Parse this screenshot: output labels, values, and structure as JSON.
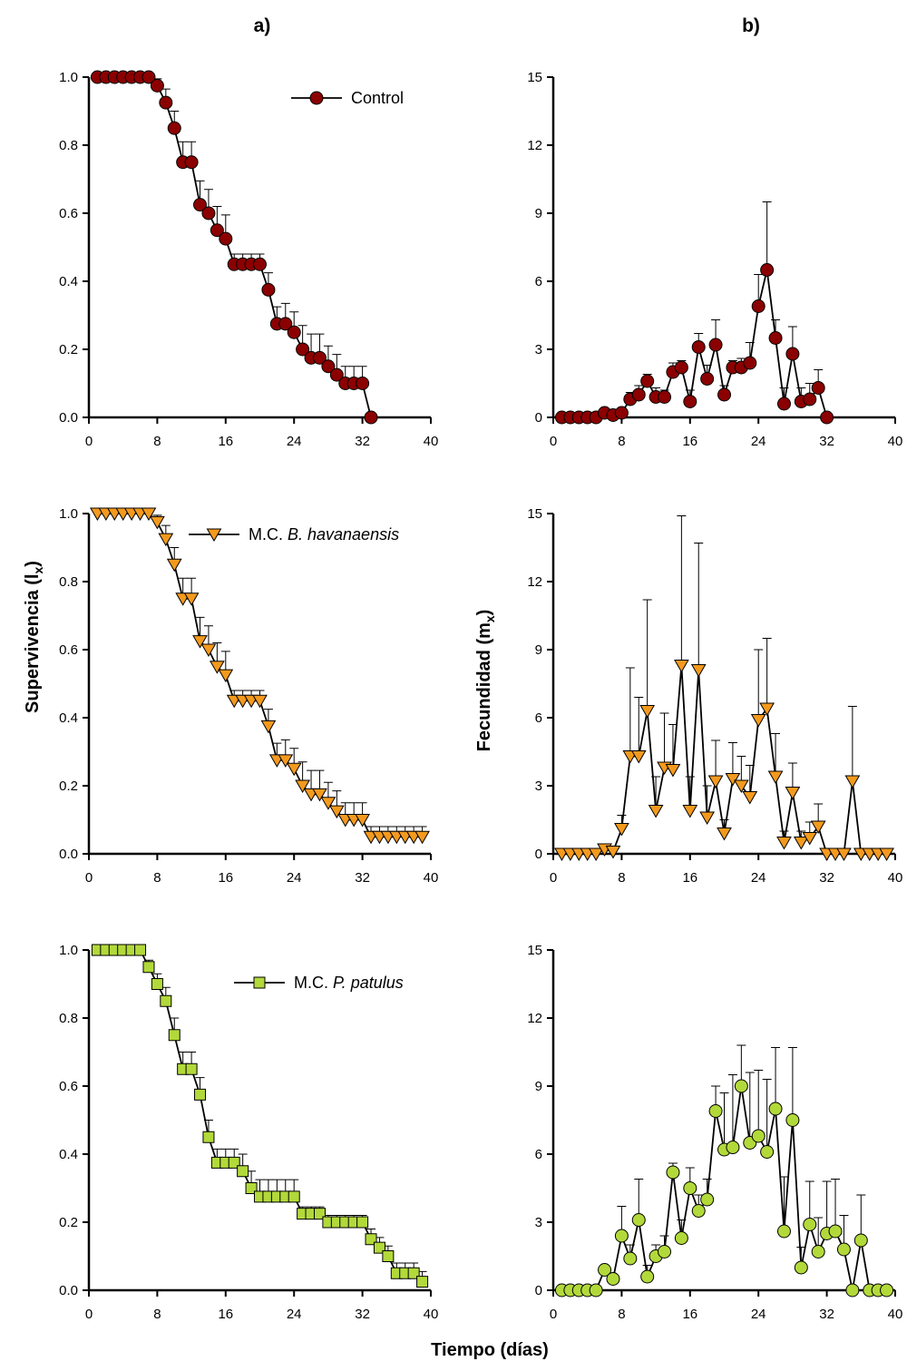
{
  "panel_labels": [
    "a)",
    "b)"
  ],
  "ylabel_left": "Supervivencia (l",
  "ylabel_left_sub": "x",
  "ylabel_right": "Fecundidad (m",
  "ylabel_right_sub": "x",
  "xlabel": "Tiempo (días)",
  "legend": [
    {
      "prefix": "Control",
      "italic": "",
      "suffix": ""
    },
    {
      "prefix": "M.C. ",
      "italic": "B. havanaensis",
      "suffix": ""
    },
    {
      "prefix": "M.C. ",
      "italic": "P. patulus",
      "suffix": ""
    }
  ],
  "colors": {
    "control": "#8b0000",
    "havanaensis": "#f39a1e",
    "patulus": "#b2d93a"
  },
  "chart_data": [
    {
      "type": "line",
      "row": 0,
      "col": 0,
      "marker": "circle",
      "color": "#8b0000",
      "xlim": [
        0,
        40
      ],
      "ylim": [
        0,
        1.0
      ],
      "xticks": [
        "0",
        "8",
        "16",
        "24",
        "32",
        "40"
      ],
      "yticks": [
        "0.0",
        "0.2",
        "0.4",
        "0.6",
        "0.8",
        "1.0"
      ],
      "x": [
        1,
        2,
        3,
        4,
        5,
        6,
        7,
        8,
        9,
        10,
        11,
        12,
        13,
        14,
        15,
        16,
        17,
        18,
        19,
        20,
        21,
        22,
        23,
        24,
        25,
        26,
        27,
        28,
        29,
        30,
        31,
        32,
        33
      ],
      "y": [
        1.0,
        1.0,
        1.0,
        1.0,
        1.0,
        1.0,
        1.0,
        0.975,
        0.925,
        0.85,
        0.75,
        0.75,
        0.625,
        0.6,
        0.55,
        0.525,
        0.45,
        0.45,
        0.45,
        0.45,
        0.375,
        0.275,
        0.275,
        0.25,
        0.2,
        0.175,
        0.175,
        0.15,
        0.125,
        0.1,
        0.1,
        0.1,
        0.0
      ],
      "err": [
        0,
        0,
        0,
        0,
        0,
        0,
        0,
        0.02,
        0.04,
        0.05,
        0.06,
        0.06,
        0.07,
        0.07,
        0.07,
        0.07,
        0.03,
        0.03,
        0.03,
        0.03,
        0.05,
        0.05,
        0.06,
        0.06,
        0.07,
        0.07,
        0.07,
        0.06,
        0.06,
        0.05,
        0.05,
        0.05,
        0
      ]
    },
    {
      "type": "line",
      "row": 0,
      "col": 1,
      "marker": "circle",
      "color": "#8b0000",
      "xlim": [
        0,
        40
      ],
      "ylim": [
        0,
        15
      ],
      "xticks": [
        "0",
        "8",
        "16",
        "24",
        "32",
        "40"
      ],
      "yticks": [
        "0",
        "3",
        "6",
        "9",
        "12",
        "15"
      ],
      "x": [
        1,
        2,
        3,
        4,
        5,
        6,
        7,
        8,
        9,
        10,
        11,
        12,
        13,
        14,
        15,
        16,
        17,
        18,
        19,
        20,
        21,
        22,
        23,
        24,
        25,
        26,
        27,
        28,
        29,
        30,
        31,
        32
      ],
      "y": [
        0,
        0,
        0,
        0,
        0,
        0.2,
        0.1,
        0.2,
        0.8,
        1.0,
        1.6,
        0.9,
        0.9,
        2.0,
        2.2,
        0.7,
        3.1,
        1.7,
        3.2,
        1.0,
        2.2,
        2.2,
        2.4,
        4.9,
        6.5,
        3.5,
        0.6,
        2.8,
        0.7,
        0.8,
        1.3,
        0.0
      ],
      "err": [
        0,
        0,
        0,
        0,
        0,
        0,
        0,
        0,
        0.3,
        0.4,
        0.3,
        0.4,
        0.3,
        0.4,
        0.3,
        0.5,
        0.6,
        0.6,
        1.1,
        0.4,
        0.3,
        0.4,
        0.9,
        1.4,
        3.0,
        0.8,
        0.7,
        1.2,
        0.6,
        0.7,
        0.8,
        0
      ]
    },
    {
      "type": "line",
      "row": 1,
      "col": 0,
      "marker": "triangle-down",
      "color": "#f39a1e",
      "xlim": [
        0,
        40
      ],
      "ylim": [
        0,
        1.0
      ],
      "xticks": [
        "0",
        "8",
        "16",
        "24",
        "32",
        "40"
      ],
      "yticks": [
        "0.0",
        "0.2",
        "0.4",
        "0.6",
        "0.8",
        "1.0"
      ],
      "x": [
        1,
        2,
        3,
        4,
        5,
        6,
        7,
        8,
        9,
        10,
        11,
        12,
        13,
        14,
        15,
        16,
        17,
        18,
        19,
        20,
        21,
        22,
        23,
        24,
        25,
        26,
        27,
        28,
        29,
        30,
        31,
        32,
        33,
        34,
        35,
        36,
        37,
        38,
        39
      ],
      "y": [
        1.0,
        1.0,
        1.0,
        1.0,
        1.0,
        1.0,
        1.0,
        0.975,
        0.925,
        0.85,
        0.75,
        0.75,
        0.625,
        0.6,
        0.55,
        0.525,
        0.45,
        0.45,
        0.45,
        0.45,
        0.375,
        0.275,
        0.275,
        0.25,
        0.2,
        0.175,
        0.175,
        0.15,
        0.125,
        0.1,
        0.1,
        0.1,
        0.05,
        0.05,
        0.05,
        0.05,
        0.05,
        0.05,
        0.05
      ],
      "err": [
        0,
        0,
        0,
        0,
        0,
        0,
        0,
        0.02,
        0.04,
        0.05,
        0.06,
        0.06,
        0.07,
        0.07,
        0.07,
        0.07,
        0.03,
        0.03,
        0.03,
        0.03,
        0.05,
        0.05,
        0.06,
        0.06,
        0.07,
        0.07,
        0.07,
        0.06,
        0.06,
        0.05,
        0.05,
        0.05,
        0.03,
        0.03,
        0.03,
        0.03,
        0.03,
        0.03,
        0.03
      ]
    },
    {
      "type": "line",
      "row": 1,
      "col": 1,
      "marker": "triangle-down",
      "color": "#f39a1e",
      "xlim": [
        0,
        40
      ],
      "ylim": [
        0,
        15
      ],
      "xticks": [
        "0",
        "8",
        "16",
        "24",
        "32",
        "40"
      ],
      "yticks": [
        "0",
        "3",
        "6",
        "9",
        "12",
        "15"
      ],
      "x": [
        1,
        2,
        3,
        4,
        5,
        6,
        7,
        8,
        9,
        10,
        11,
        12,
        13,
        14,
        15,
        16,
        17,
        18,
        19,
        20,
        21,
        22,
        23,
        24,
        25,
        26,
        27,
        28,
        29,
        30,
        31,
        32,
        33,
        34,
        35,
        36,
        37,
        38,
        39
      ],
      "y": [
        0,
        0,
        0,
        0,
        0,
        0.2,
        0.1,
        1.1,
        4.3,
        4.3,
        6.3,
        1.9,
        3.8,
        3.7,
        8.3,
        1.9,
        8.1,
        1.6,
        3.2,
        0.9,
        3.3,
        3.0,
        2.5,
        5.9,
        6.4,
        3.4,
        0.5,
        2.7,
        0.5,
        0.7,
        1.2,
        0,
        0,
        0,
        3.2,
        0,
        0,
        0,
        0
      ],
      "err": [
        0,
        0,
        0,
        0,
        0,
        0,
        0,
        0.6,
        3.9,
        2.6,
        4.9,
        1.5,
        2.4,
        2.0,
        6.6,
        1.5,
        5.6,
        1.4,
        1.8,
        0.6,
        1.6,
        1.3,
        1.4,
        3.1,
        3.1,
        1.9,
        0.5,
        1.3,
        0.5,
        0.7,
        1.0,
        0,
        0,
        0,
        3.3,
        0,
        0,
        0,
        0
      ]
    },
    {
      "type": "line",
      "row": 2,
      "col": 0,
      "marker": "square",
      "color": "#b2d93a",
      "xlim": [
        0,
        40
      ],
      "ylim": [
        0,
        1.0
      ],
      "xticks": [
        "0",
        "8",
        "16",
        "24",
        "32",
        "40"
      ],
      "yticks": [
        "0.0",
        "0.2",
        "0.4",
        "0.6",
        "0.8",
        "1.0"
      ],
      "x": [
        1,
        2,
        3,
        4,
        5,
        6,
        7,
        8,
        9,
        10,
        11,
        12,
        13,
        14,
        15,
        16,
        17,
        18,
        19,
        20,
        21,
        22,
        23,
        24,
        25,
        26,
        27,
        28,
        29,
        30,
        31,
        32,
        33,
        34,
        35,
        36,
        37,
        38,
        39
      ],
      "y": [
        1.0,
        1.0,
        1.0,
        1.0,
        1.0,
        1.0,
        0.95,
        0.9,
        0.85,
        0.75,
        0.65,
        0.65,
        0.575,
        0.45,
        0.375,
        0.375,
        0.375,
        0.35,
        0.3,
        0.275,
        0.275,
        0.275,
        0.275,
        0.275,
        0.225,
        0.225,
        0.225,
        0.2,
        0.2,
        0.2,
        0.2,
        0.2,
        0.15,
        0.125,
        0.1,
        0.05,
        0.05,
        0.05,
        0.025
      ],
      "err": [
        0,
        0,
        0,
        0,
        0,
        0,
        0.02,
        0.03,
        0.04,
        0.05,
        0.05,
        0.05,
        0.05,
        0.05,
        0.04,
        0.04,
        0.04,
        0.05,
        0.05,
        0.05,
        0.05,
        0.05,
        0.05,
        0.05,
        0.02,
        0.02,
        0.02,
        0.02,
        0.02,
        0.02,
        0.02,
        0.02,
        0.03,
        0.03,
        0.03,
        0.03,
        0.03,
        0.03,
        0.03
      ]
    },
    {
      "type": "line",
      "row": 2,
      "col": 1,
      "marker": "circle",
      "color": "#b2d93a",
      "xlim": [
        0,
        40
      ],
      "ylim": [
        0,
        15
      ],
      "xticks": [
        "0",
        "8",
        "16",
        "24",
        "32",
        "40"
      ],
      "yticks": [
        "0",
        "3",
        "6",
        "9",
        "12",
        "15"
      ],
      "x": [
        1,
        2,
        3,
        4,
        5,
        6,
        7,
        8,
        9,
        10,
        11,
        12,
        13,
        14,
        15,
        16,
        17,
        18,
        19,
        20,
        21,
        22,
        23,
        24,
        25,
        26,
        27,
        28,
        29,
        30,
        31,
        32,
        33,
        34,
        35,
        36,
        37,
        38,
        39
      ],
      "y": [
        0,
        0,
        0,
        0,
        0,
        0.9,
        0.5,
        2.4,
        1.4,
        3.1,
        0.6,
        1.5,
        1.7,
        5.2,
        2.3,
        4.5,
        3.5,
        4.0,
        7.9,
        6.2,
        6.3,
        9.0,
        6.5,
        6.8,
        6.1,
        8.0,
        2.6,
        7.5,
        1.0,
        2.9,
        1.7,
        2.5,
        2.6,
        1.8,
        0,
        2.2,
        0,
        0,
        0
      ],
      "err": [
        0,
        0,
        0,
        0,
        0,
        0,
        0,
        1.3,
        0.6,
        1.8,
        0.5,
        0.5,
        0.7,
        0.4,
        0.8,
        0.9,
        0.7,
        0.9,
        1.1,
        2.5,
        3.2,
        1.8,
        3.1,
        2.9,
        3.2,
        2.7,
        2.4,
        3.2,
        0.9,
        1.9,
        1.5,
        2.3,
        2.3,
        1.5,
        0,
        2.0,
        0,
        0,
        0
      ]
    }
  ]
}
